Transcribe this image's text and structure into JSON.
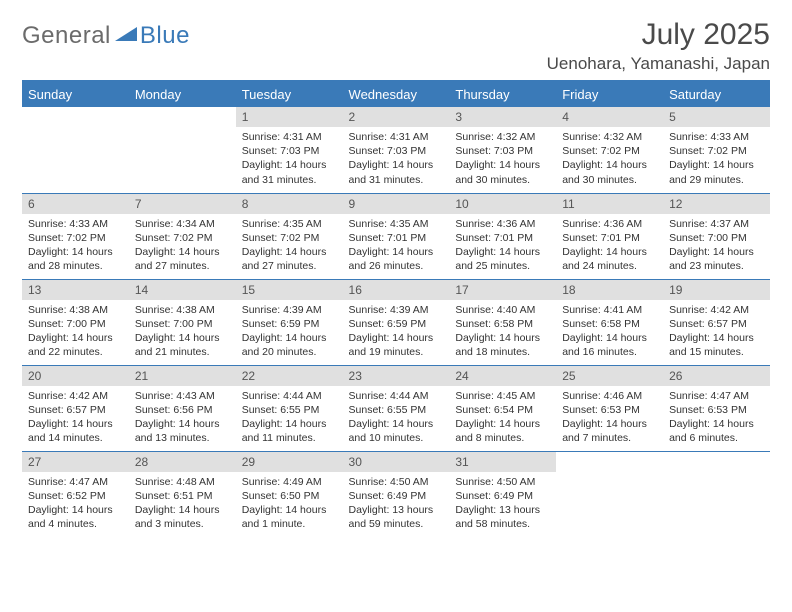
{
  "logo": {
    "text1": "General",
    "text2": "Blue"
  },
  "title": "July 2025",
  "location": "Uenohara, Yamanashi, Japan",
  "colors": {
    "brand": "#3a7ab8",
    "gray_text": "#6b6b6b",
    "title_text": "#4a4a4a",
    "daynum_bg": "#e0e0e0",
    "body_text": "#333333"
  },
  "dayHeaders": [
    "Sunday",
    "Monday",
    "Tuesday",
    "Wednesday",
    "Thursday",
    "Friday",
    "Saturday"
  ],
  "weeks": [
    [
      null,
      null,
      {
        "n": "1",
        "sr": "4:31 AM",
        "ss": "7:03 PM",
        "dl": "14 hours and 31 minutes."
      },
      {
        "n": "2",
        "sr": "4:31 AM",
        "ss": "7:03 PM",
        "dl": "14 hours and 31 minutes."
      },
      {
        "n": "3",
        "sr": "4:32 AM",
        "ss": "7:03 PM",
        "dl": "14 hours and 30 minutes."
      },
      {
        "n": "4",
        "sr": "4:32 AM",
        "ss": "7:02 PM",
        "dl": "14 hours and 30 minutes."
      },
      {
        "n": "5",
        "sr": "4:33 AM",
        "ss": "7:02 PM",
        "dl": "14 hours and 29 minutes."
      }
    ],
    [
      {
        "n": "6",
        "sr": "4:33 AM",
        "ss": "7:02 PM",
        "dl": "14 hours and 28 minutes."
      },
      {
        "n": "7",
        "sr": "4:34 AM",
        "ss": "7:02 PM",
        "dl": "14 hours and 27 minutes."
      },
      {
        "n": "8",
        "sr": "4:35 AM",
        "ss": "7:02 PM",
        "dl": "14 hours and 27 minutes."
      },
      {
        "n": "9",
        "sr": "4:35 AM",
        "ss": "7:01 PM",
        "dl": "14 hours and 26 minutes."
      },
      {
        "n": "10",
        "sr": "4:36 AM",
        "ss": "7:01 PM",
        "dl": "14 hours and 25 minutes."
      },
      {
        "n": "11",
        "sr": "4:36 AM",
        "ss": "7:01 PM",
        "dl": "14 hours and 24 minutes."
      },
      {
        "n": "12",
        "sr": "4:37 AM",
        "ss": "7:00 PM",
        "dl": "14 hours and 23 minutes."
      }
    ],
    [
      {
        "n": "13",
        "sr": "4:38 AM",
        "ss": "7:00 PM",
        "dl": "14 hours and 22 minutes."
      },
      {
        "n": "14",
        "sr": "4:38 AM",
        "ss": "7:00 PM",
        "dl": "14 hours and 21 minutes."
      },
      {
        "n": "15",
        "sr": "4:39 AM",
        "ss": "6:59 PM",
        "dl": "14 hours and 20 minutes."
      },
      {
        "n": "16",
        "sr": "4:39 AM",
        "ss": "6:59 PM",
        "dl": "14 hours and 19 minutes."
      },
      {
        "n": "17",
        "sr": "4:40 AM",
        "ss": "6:58 PM",
        "dl": "14 hours and 18 minutes."
      },
      {
        "n": "18",
        "sr": "4:41 AM",
        "ss": "6:58 PM",
        "dl": "14 hours and 16 minutes."
      },
      {
        "n": "19",
        "sr": "4:42 AM",
        "ss": "6:57 PM",
        "dl": "14 hours and 15 minutes."
      }
    ],
    [
      {
        "n": "20",
        "sr": "4:42 AM",
        "ss": "6:57 PM",
        "dl": "14 hours and 14 minutes."
      },
      {
        "n": "21",
        "sr": "4:43 AM",
        "ss": "6:56 PM",
        "dl": "14 hours and 13 minutes."
      },
      {
        "n": "22",
        "sr": "4:44 AM",
        "ss": "6:55 PM",
        "dl": "14 hours and 11 minutes."
      },
      {
        "n": "23",
        "sr": "4:44 AM",
        "ss": "6:55 PM",
        "dl": "14 hours and 10 minutes."
      },
      {
        "n": "24",
        "sr": "4:45 AM",
        "ss": "6:54 PM",
        "dl": "14 hours and 8 minutes."
      },
      {
        "n": "25",
        "sr": "4:46 AM",
        "ss": "6:53 PM",
        "dl": "14 hours and 7 minutes."
      },
      {
        "n": "26",
        "sr": "4:47 AM",
        "ss": "6:53 PM",
        "dl": "14 hours and 6 minutes."
      }
    ],
    [
      {
        "n": "27",
        "sr": "4:47 AM",
        "ss": "6:52 PM",
        "dl": "14 hours and 4 minutes."
      },
      {
        "n": "28",
        "sr": "4:48 AM",
        "ss": "6:51 PM",
        "dl": "14 hours and 3 minutes."
      },
      {
        "n": "29",
        "sr": "4:49 AM",
        "ss": "6:50 PM",
        "dl": "14 hours and 1 minute."
      },
      {
        "n": "30",
        "sr": "4:50 AM",
        "ss": "6:49 PM",
        "dl": "13 hours and 59 minutes."
      },
      {
        "n": "31",
        "sr": "4:50 AM",
        "ss": "6:49 PM",
        "dl": "13 hours and 58 minutes."
      },
      null,
      null
    ]
  ],
  "labels": {
    "sunrise": "Sunrise:",
    "sunset": "Sunset:",
    "daylight": "Daylight:"
  }
}
